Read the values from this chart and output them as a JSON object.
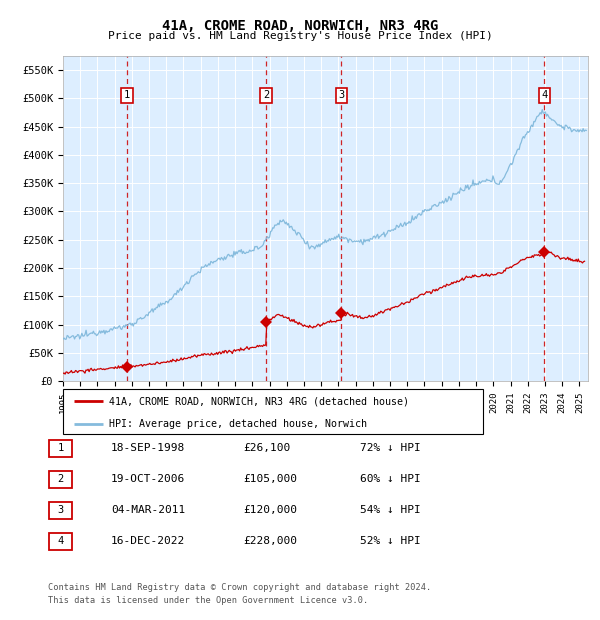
{
  "title": "41A, CROME ROAD, NORWICH, NR3 4RG",
  "subtitle": "Price paid vs. HM Land Registry's House Price Index (HPI)",
  "legend_line1": "41A, CROME ROAD, NORWICH, NR3 4RG (detached house)",
  "legend_line2": "HPI: Average price, detached house, Norwich",
  "footer1": "Contains HM Land Registry data © Crown copyright and database right 2024.",
  "footer2": "This data is licensed under the Open Government Licence v3.0.",
  "hpi_color": "#85bbdd",
  "price_color": "#cc0000",
  "background_color": "#ddeeff",
  "transactions": [
    {
      "num": 1,
      "date": "18-SEP-1998",
      "price": 26100,
      "pct": "72% ↓ HPI",
      "x": 1998.71
    },
    {
      "num": 2,
      "date": "19-OCT-2006",
      "price": 105000,
      "pct": "60% ↓ HPI",
      "x": 2006.8
    },
    {
      "num": 3,
      "date": "04-MAR-2011",
      "price": 120000,
      "pct": "54% ↓ HPI",
      "x": 2011.17
    },
    {
      "num": 4,
      "date": "16-DEC-2022",
      "price": 228000,
      "pct": "52% ↓ HPI",
      "x": 2022.96
    }
  ],
  "ylim": [
    0,
    575000
  ],
  "xlim_start": 1995.0,
  "xlim_end": 2025.5,
  "yticks": [
    0,
    50000,
    100000,
    150000,
    200000,
    250000,
    300000,
    350000,
    400000,
    450000,
    500000,
    550000
  ],
  "ytick_labels": [
    "£0",
    "£50K",
    "£100K",
    "£150K",
    "£200K",
    "£250K",
    "£300K",
    "£350K",
    "£400K",
    "£450K",
    "£500K",
    "£550K"
  ],
  "hpi_anchors": [
    [
      1995.0,
      75000
    ],
    [
      1995.5,
      77000
    ],
    [
      1996.0,
      80000
    ],
    [
      1996.5,
      83000
    ],
    [
      1997.0,
      87000
    ],
    [
      1997.5,
      90000
    ],
    [
      1998.0,
      93000
    ],
    [
      1998.5,
      96000
    ],
    [
      1999.0,
      102000
    ],
    [
      1999.5,
      110000
    ],
    [
      2000.0,
      120000
    ],
    [
      2000.5,
      130000
    ],
    [
      2001.0,
      140000
    ],
    [
      2001.5,
      152000
    ],
    [
      2002.0,
      168000
    ],
    [
      2002.5,
      185000
    ],
    [
      2003.0,
      197000
    ],
    [
      2003.5,
      207000
    ],
    [
      2004.0,
      215000
    ],
    [
      2004.5,
      220000
    ],
    [
      2005.0,
      225000
    ],
    [
      2005.5,
      228000
    ],
    [
      2006.0,
      232000
    ],
    [
      2006.5,
      238000
    ],
    [
      2007.0,
      258000
    ],
    [
      2007.3,
      275000
    ],
    [
      2007.6,
      285000
    ],
    [
      2007.9,
      280000
    ],
    [
      2008.3,
      270000
    ],
    [
      2008.7,
      260000
    ],
    [
      2009.0,
      250000
    ],
    [
      2009.3,
      240000
    ],
    [
      2009.6,
      237000
    ],
    [
      2009.9,
      240000
    ],
    [
      2010.3,
      248000
    ],
    [
      2010.6,
      253000
    ],
    [
      2011.0,
      255000
    ],
    [
      2011.5,
      252000
    ],
    [
      2012.0,
      248000
    ],
    [
      2012.5,
      248000
    ],
    [
      2013.0,
      252000
    ],
    [
      2013.5,
      258000
    ],
    [
      2014.0,
      265000
    ],
    [
      2014.5,
      272000
    ],
    [
      2015.0,
      280000
    ],
    [
      2015.5,
      290000
    ],
    [
      2016.0,
      300000
    ],
    [
      2016.5,
      308000
    ],
    [
      2017.0,
      315000
    ],
    [
      2017.5,
      325000
    ],
    [
      2018.0,
      335000
    ],
    [
      2018.5,
      342000
    ],
    [
      2019.0,
      348000
    ],
    [
      2019.5,
      353000
    ],
    [
      2020.0,
      355000
    ],
    [
      2020.3,
      350000
    ],
    [
      2020.6,
      360000
    ],
    [
      2020.9,
      375000
    ],
    [
      2021.2,
      395000
    ],
    [
      2021.5,
      415000
    ],
    [
      2021.8,
      430000
    ],
    [
      2022.0,
      440000
    ],
    [
      2022.3,
      455000
    ],
    [
      2022.6,
      470000
    ],
    [
      2022.9,
      478000
    ],
    [
      2023.1,
      472000
    ],
    [
      2023.4,
      462000
    ],
    [
      2023.7,
      455000
    ],
    [
      2024.0,
      450000
    ],
    [
      2024.3,
      448000
    ],
    [
      2024.6,
      445000
    ],
    [
      2025.0,
      442000
    ],
    [
      2025.3,
      440000
    ]
  ],
  "price_anchors": [
    [
      1995.0,
      15000
    ],
    [
      1998.71,
      26100
    ],
    [
      1999.0,
      27000
    ],
    [
      2000.0,
      30000
    ],
    [
      2001.0,
      34000
    ],
    [
      2002.0,
      40000
    ],
    [
      2003.0,
      46000
    ],
    [
      2004.0,
      50000
    ],
    [
      2005.0,
      54000
    ],
    [
      2006.0,
      60000
    ],
    [
      2006.79,
      64000
    ],
    [
      2006.8,
      105000
    ],
    [
      2007.0,
      108000
    ],
    [
      2007.5,
      118000
    ],
    [
      2008.0,
      112000
    ],
    [
      2008.5,
      105000
    ],
    [
      2009.0,
      98000
    ],
    [
      2009.5,
      96000
    ],
    [
      2010.0,
      100000
    ],
    [
      2010.5,
      105000
    ],
    [
      2011.16,
      108000
    ],
    [
      2011.17,
      120000
    ],
    [
      2011.5,
      118000
    ],
    [
      2012.0,
      114000
    ],
    [
      2012.5,
      112000
    ],
    [
      2013.0,
      116000
    ],
    [
      2013.5,
      122000
    ],
    [
      2014.0,
      128000
    ],
    [
      2014.5,
      133000
    ],
    [
      2015.0,
      140000
    ],
    [
      2015.5,
      147000
    ],
    [
      2016.0,
      155000
    ],
    [
      2016.5,
      160000
    ],
    [
      2017.0,
      166000
    ],
    [
      2017.5,
      172000
    ],
    [
      2018.0,
      178000
    ],
    [
      2018.5,
      183000
    ],
    [
      2019.0,
      186000
    ],
    [
      2019.5,
      188000
    ],
    [
      2020.0,
      187000
    ],
    [
      2020.5,
      192000
    ],
    [
      2021.0,
      202000
    ],
    [
      2021.5,
      212000
    ],
    [
      2022.0,
      218000
    ],
    [
      2022.5,
      222000
    ],
    [
      2022.95,
      226000
    ],
    [
      2022.96,
      228000
    ],
    [
      2023.0,
      232000
    ],
    [
      2023.3,
      228000
    ],
    [
      2023.6,
      222000
    ],
    [
      2024.0,
      218000
    ],
    [
      2024.5,
      215000
    ],
    [
      2025.0,
      212000
    ],
    [
      2025.3,
      210000
    ]
  ]
}
